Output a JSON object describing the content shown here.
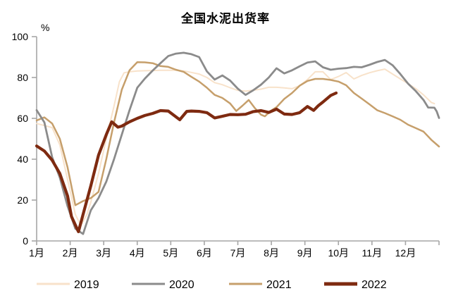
{
  "title": "全国水泥出货率",
  "chart_data": {
    "type": "line",
    "title": "全国水泥出货率",
    "ylabel": "%",
    "ylim": [
      0,
      100
    ],
    "y_ticks": [
      0,
      20,
      40,
      60,
      80,
      100
    ],
    "x_tick_labels": [
      "1月",
      "2月",
      "3月",
      "4月",
      "5月",
      "6月",
      "7月",
      "8月",
      "9月",
      "10月",
      "11月",
      "12月"
    ],
    "x_unit": "week of year (1-53 scale, 1月=week1)",
    "grid": false,
    "legend_position": "bottom",
    "axis_color": "#a6a6a6",
    "text_color": "#000000",
    "series": [
      {
        "name": "2019",
        "color": "#f8e2ca",
        "line_width": 2,
        "points": [
          [
            1,
            57.5
          ],
          [
            2,
            56.5
          ],
          [
            3,
            55.5
          ],
          [
            4,
            47
          ],
          [
            5,
            30
          ],
          [
            6,
            13
          ],
          [
            6.7,
            7.6
          ],
          [
            7.5,
            13
          ],
          [
            8,
            19
          ],
          [
            9,
            33
          ],
          [
            10,
            50
          ],
          [
            11,
            66
          ],
          [
            11.7,
            78
          ],
          [
            12.3,
            82.3
          ],
          [
            13,
            82.8
          ],
          [
            14,
            83.2
          ],
          [
            15,
            83.3
          ],
          [
            16,
            83.4
          ],
          [
            17,
            83.5
          ],
          [
            18,
            83.5
          ],
          [
            19,
            83.6
          ],
          [
            20,
            83.2
          ],
          [
            21,
            82.5
          ],
          [
            22,
            81.7
          ],
          [
            23,
            80
          ],
          [
            24,
            77.5
          ],
          [
            25,
            76.5
          ],
          [
            26,
            75
          ],
          [
            27,
            73.7
          ],
          [
            28,
            73.3
          ],
          [
            29,
            73.8
          ],
          [
            30,
            74.3
          ],
          [
            31,
            75.2
          ],
          [
            32,
            75.2
          ],
          [
            33,
            74.9
          ],
          [
            34,
            74.5
          ],
          [
            35,
            76
          ],
          [
            36,
            79
          ],
          [
            37,
            82.8
          ],
          [
            38,
            82.8
          ],
          [
            39,
            79
          ],
          [
            40,
            80.5
          ],
          [
            41,
            82.4
          ],
          [
            42,
            79.3
          ],
          [
            43,
            81
          ],
          [
            44,
            82.3
          ],
          [
            45,
            83.3
          ],
          [
            46,
            84.1
          ],
          [
            47,
            81.7
          ],
          [
            48,
            79.3
          ],
          [
            49,
            77
          ],
          [
            50,
            74.5
          ],
          [
            51,
            71.5
          ],
          [
            52,
            67.8
          ],
          [
            52.4,
            67.2
          ]
        ]
      },
      {
        "name": "2021",
        "color": "#c69f6b",
        "line_width": 2.5,
        "points": [
          [
            1,
            59
          ],
          [
            2,
            60.5
          ],
          [
            3,
            57.5
          ],
          [
            4,
            50
          ],
          [
            5,
            36
          ],
          [
            6,
            17.5
          ],
          [
            7,
            19.5
          ],
          [
            8,
            21
          ],
          [
            9,
            24
          ],
          [
            10,
            40
          ],
          [
            11,
            58
          ],
          [
            12,
            74
          ],
          [
            13,
            83.5
          ],
          [
            14,
            87.5
          ],
          [
            15,
            87.4
          ],
          [
            16,
            87
          ],
          [
            17,
            85.6
          ],
          [
            18,
            85.2
          ],
          [
            19,
            83.8
          ],
          [
            20,
            82.8
          ],
          [
            21,
            80.3
          ],
          [
            22,
            78
          ],
          [
            23,
            75
          ],
          [
            24,
            71.5
          ],
          [
            25,
            70
          ],
          [
            26,
            67.3
          ],
          [
            26.8,
            63.6
          ],
          [
            27.6,
            66.2
          ],
          [
            28.4,
            69
          ],
          [
            29.2,
            65
          ],
          [
            30,
            61.8
          ],
          [
            30.5,
            61
          ],
          [
            31.2,
            63.5
          ],
          [
            32,
            65.5
          ],
          [
            33,
            69.5
          ],
          [
            34,
            72.4
          ],
          [
            35,
            76
          ],
          [
            36,
            78.3
          ],
          [
            37,
            79.3
          ],
          [
            38,
            79.3
          ],
          [
            39,
            78.8
          ],
          [
            40,
            78
          ],
          [
            41,
            76.2
          ],
          [
            42,
            72.4
          ],
          [
            43,
            69.7
          ],
          [
            44,
            66.9
          ],
          [
            45,
            64
          ],
          [
            46,
            62.6
          ],
          [
            47,
            61
          ],
          [
            48,
            59.3
          ],
          [
            49,
            56.9
          ],
          [
            50,
            55.2
          ],
          [
            51,
            53.5
          ],
          [
            52,
            49.5
          ],
          [
            53,
            46.2
          ]
        ]
      },
      {
        "name": "2020",
        "color": "#8b8b8b",
        "line_width": 2.8,
        "points": [
          [
            1,
            64
          ],
          [
            2,
            58
          ],
          [
            3,
            41
          ],
          [
            4,
            31
          ],
          [
            5,
            17
          ],
          [
            6,
            6
          ],
          [
            7,
            3.4
          ],
          [
            8,
            15
          ],
          [
            9,
            21
          ],
          [
            10,
            29
          ],
          [
            11,
            40
          ],
          [
            12,
            52
          ],
          [
            13,
            64
          ],
          [
            14,
            75
          ],
          [
            15,
            79.5
          ],
          [
            16,
            83.4
          ],
          [
            17,
            87
          ],
          [
            18,
            90.5
          ],
          [
            19,
            91.7
          ],
          [
            20,
            92.1
          ],
          [
            21,
            91.4
          ],
          [
            22,
            90
          ],
          [
            23,
            83
          ],
          [
            24,
            79
          ],
          [
            25,
            81
          ],
          [
            26,
            78.5
          ],
          [
            27,
            74.5
          ],
          [
            28,
            71.5
          ],
          [
            29,
            73.8
          ],
          [
            30,
            76.5
          ],
          [
            31,
            80
          ],
          [
            32,
            84.5
          ],
          [
            33,
            82
          ],
          [
            34,
            83.5
          ],
          [
            35,
            85.5
          ],
          [
            36,
            87.3
          ],
          [
            37,
            87.9
          ],
          [
            38,
            85
          ],
          [
            39,
            83.8
          ],
          [
            40,
            84.3
          ],
          [
            41,
            84.6
          ],
          [
            42,
            85.2
          ],
          [
            43,
            85
          ],
          [
            44,
            86.2
          ],
          [
            45,
            87.6
          ],
          [
            46,
            88.6
          ],
          [
            47,
            86
          ],
          [
            48,
            81.7
          ],
          [
            49,
            77
          ],
          [
            50,
            73.3
          ],
          [
            51,
            69
          ],
          [
            51.6,
            65.3
          ],
          [
            52.4,
            65.2
          ],
          [
            52.7,
            63.4
          ],
          [
            53,
            60.2
          ]
        ]
      },
      {
        "name": "2022",
        "color": "#7e2a10",
        "line_width": 4.2,
        "points": [
          [
            1,
            46.5
          ],
          [
            2,
            44
          ],
          [
            3,
            39.5
          ],
          [
            4,
            33
          ],
          [
            5,
            22
          ],
          [
            5.5,
            12
          ],
          [
            6.4,
            4.5
          ],
          [
            7,
            13
          ],
          [
            8,
            27
          ],
          [
            9,
            42
          ],
          [
            10,
            52
          ],
          [
            10.7,
            58.3
          ],
          [
            11.5,
            55.7
          ],
          [
            12,
            56.2
          ],
          [
            13,
            58.3
          ],
          [
            14,
            60
          ],
          [
            15,
            61.4
          ],
          [
            16,
            62.4
          ],
          [
            17,
            63.8
          ],
          [
            18,
            63.6
          ],
          [
            19.5,
            59.3
          ],
          [
            20.4,
            63.4
          ],
          [
            21,
            63.6
          ],
          [
            22,
            63.4
          ],
          [
            23,
            62.8
          ],
          [
            24,
            60.2
          ],
          [
            25,
            61
          ],
          [
            26,
            61.9
          ],
          [
            27,
            61.8
          ],
          [
            28,
            62
          ],
          [
            29,
            63.3
          ],
          [
            30,
            63.8
          ],
          [
            31,
            62.9
          ],
          [
            32,
            64.5
          ],
          [
            33,
            62.1
          ],
          [
            34,
            61.9
          ],
          [
            35,
            62.8
          ],
          [
            36,
            65.8
          ],
          [
            36.8,
            63.9
          ],
          [
            37.4,
            66.2
          ],
          [
            38,
            68
          ],
          [
            39,
            71.2
          ],
          [
            39.7,
            72.4
          ]
        ]
      }
    ]
  }
}
